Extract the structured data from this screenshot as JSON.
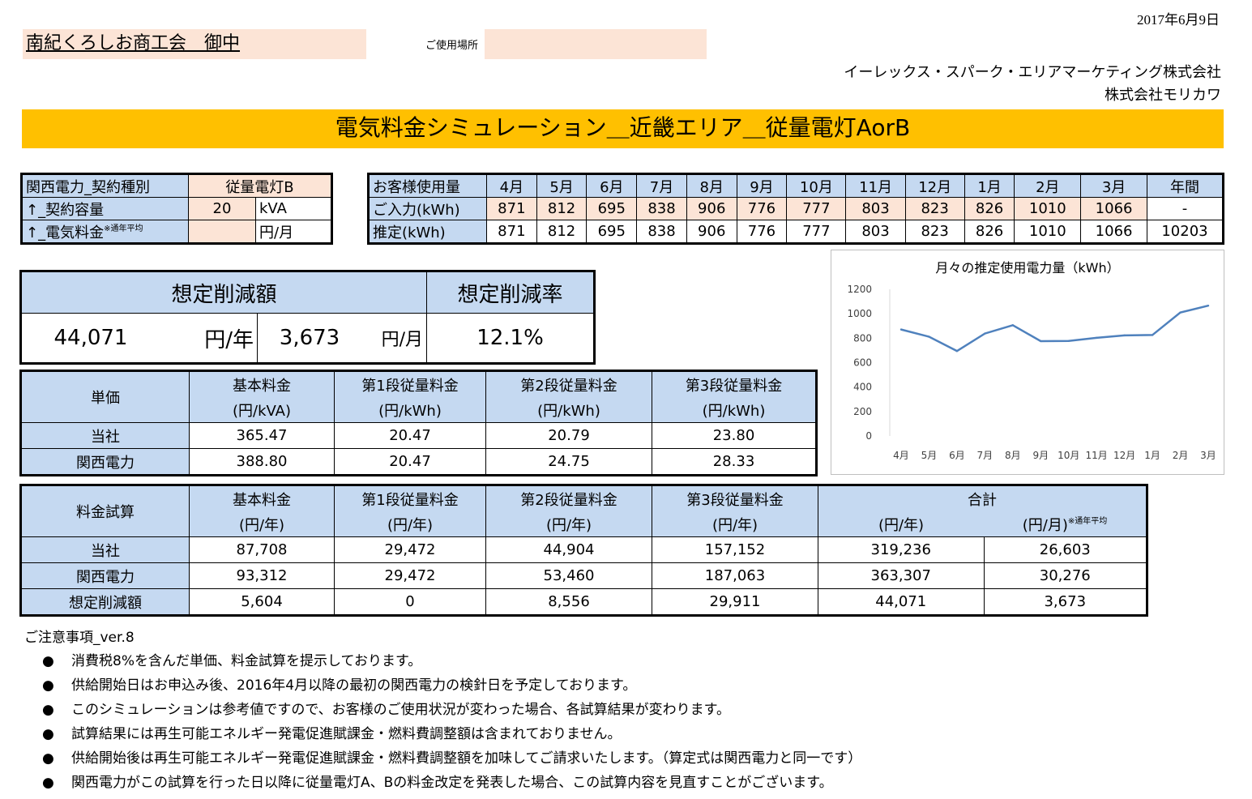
{
  "date": "2017年6月9日",
  "client": "南紀くろしお商工会　御中",
  "place_label": "ご使用場所",
  "place_value": "",
  "company1": "イーレックス・スパーク・エリアマーケティング株式会社",
  "company2": "株式会社モリカワ",
  "title": "電気料金シミュレーション＿近畿エリア＿従量電灯AorB",
  "contract": {
    "type_label": "関西電力_契約種別",
    "type_value": "従量電灯B",
    "capacity_label": "↑_契約容量",
    "capacity_value": "20",
    "capacity_unit": "kVA",
    "fee_label": "↑_電気料金",
    "fee_note": "※通年平均",
    "fee_value": "",
    "fee_unit": "円/月"
  },
  "usage": {
    "header_label": "お客様使用量",
    "months": [
      "4月",
      "5月",
      "6月",
      "7月",
      "8月",
      "9月",
      "10月",
      "11月",
      "12月",
      "1月",
      "2月",
      "3月"
    ],
    "annual_label": "年間",
    "input_label": "ご入力(kWh)",
    "input_values": [
      "871",
      "812",
      "695",
      "838",
      "906",
      "776",
      "777",
      "803",
      "823",
      "826",
      "1010",
      "1066"
    ],
    "input_annual": "-",
    "est_label": "推定(kWh)",
    "est_values": [
      "871",
      "812",
      "695",
      "838",
      "906",
      "776",
      "777",
      "803",
      "823",
      "826",
      "1010",
      "1066"
    ],
    "est_annual": "10203"
  },
  "savings": {
    "amount_label": "想定削減額",
    "rate_label": "想定削減率",
    "yearly": "44,071",
    "yearly_unit": "円/年",
    "monthly": "3,673",
    "monthly_unit": "円/月",
    "rate": "12.1%"
  },
  "rates": {
    "row_header": "単価",
    "cols": [
      {
        "name": "基本料金",
        "unit": "(円/kVA)"
      },
      {
        "name": "第1段従量料金",
        "unit": "(円/kWh)"
      },
      {
        "name": "第2段従量料金",
        "unit": "(円/kWh)"
      },
      {
        "name": "第3段従量料金",
        "unit": "(円/kWh)"
      }
    ],
    "rows": [
      {
        "label": "当社",
        "values": [
          "365.47",
          "20.47",
          "20.79",
          "23.80"
        ]
      },
      {
        "label": "関西電力",
        "values": [
          "388.80",
          "20.47",
          "24.75",
          "28.33"
        ]
      }
    ]
  },
  "calc": {
    "row_header": "料金試算",
    "cols": [
      {
        "name": "基本料金",
        "unit": "(円/年)"
      },
      {
        "name": "第1段従量料金",
        "unit": "(円/年)"
      },
      {
        "name": "第2段従量料金",
        "unit": "(円/年)"
      },
      {
        "name": "第3段従量料金",
        "unit": "(円/年)"
      }
    ],
    "total_label": "合計",
    "total_year_unit": "(円/年)",
    "total_month_unit": "(円/月)",
    "total_month_note": "※通年平均",
    "rows": [
      {
        "label": "当社",
        "values": [
          "87,708",
          "29,472",
          "44,904",
          "157,152",
          "319,236",
          "26,603"
        ]
      },
      {
        "label": "関西電力",
        "values": [
          "93,312",
          "29,472",
          "53,460",
          "187,063",
          "363,307",
          "30,276"
        ]
      },
      {
        "label": "想定削減額",
        "values": [
          "5,604",
          "0",
          "8,556",
          "29,911",
          "44,071",
          "3,673"
        ]
      }
    ]
  },
  "notes": {
    "title": "ご注意事項_ver.8",
    "bullet": "●",
    "items": [
      "消費税8%を含んだ単価、料金試算を提示しております。",
      "供給開始日はお申込み後、2016年4月以降の最初の関西電力の検針日を予定しております。",
      "このシミュレーションは参考値ですので、お客様のご使用状況が変わった場合、各試算結果が変わります。",
      "試算結果には再生可能エネルギー発電促進賦課金・燃料費調整額は含まれておりません。",
      "供給開始後は再生可能エネルギー発電促進賦課金・燃料費調整額を加味してご請求いたします。（算定式は関西電力と同一です）",
      "関西電力がこの試算を行った日以降に従量電灯A、Bの料金改定を発表した場合、この試算内容を見直すことがございます。"
    ]
  },
  "chart_data": {
    "type": "line",
    "title": "月々の推定使用電力量（kWh）",
    "categories": [
      "4月",
      "5月",
      "6月",
      "7月",
      "8月",
      "9月",
      "10月",
      "11月",
      "12月",
      "1月",
      "2月",
      "3月"
    ],
    "values": [
      871,
      812,
      695,
      838,
      906,
      776,
      777,
      803,
      823,
      826,
      1010,
      1066
    ],
    "ylim": [
      0,
      1200
    ],
    "yticks": [
      "0",
      "200",
      "400",
      "600",
      "800",
      "1000",
      "1200"
    ],
    "color": "#4f81bd",
    "grid": false
  }
}
